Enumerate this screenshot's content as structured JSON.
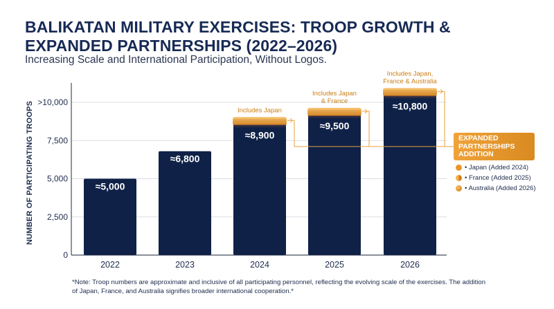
{
  "title": "BALIKATAN MILITARY EXERCISES: TROOP GROWTH & EXPANDED PARTNERSHIPS (2022–2026)",
  "subtitle": "Increasing Scale and International Participation, Without Logos.",
  "colors": {
    "bar": "#0f2147",
    "accent": "#e9962c",
    "text": "#1d2c4c"
  },
  "chart_data": {
    "type": "bar",
    "categories": [
      "2022",
      "2023",
      "2024",
      "2025",
      "2026"
    ],
    "values": [
      5000,
      6800,
      8900,
      9500,
      10800
    ],
    "value_labels": [
      "≈5,000",
      "≈6,800",
      "≈8,900",
      "≈9,500",
      "≈10,800"
    ],
    "ylabel": "NUMBER OF PARTICIPATING TROOPS",
    "ylim": [
      0,
      10000
    ],
    "yticks": [
      0,
      2500,
      5000,
      7500,
      10000
    ],
    "ytick_labels": [
      "0",
      "2,500",
      "5,000",
      "7,500",
      ">10,000"
    ],
    "grid": true,
    "annotations": [
      {
        "category": "2024",
        "lines": [
          "Includes Japan"
        ]
      },
      {
        "category": "2025",
        "lines": [
          "Includes Japan",
          "& France"
        ]
      },
      {
        "category": "2026",
        "lines": [
          "Includes Japan,",
          "France & Australia"
        ]
      }
    ],
    "legend": {
      "title": "EXPANDED PARTNERSHIPS ADDITION",
      "items": [
        "• Japan (Added 2024)",
        "• France (Added 2025)",
        "• Australia (Added 2026)"
      ]
    }
  },
  "note": "*Note: Troop numbers are approximate and inclusive of all participating personnel, reflecting the evolving scale of the exercises. The addition of Japan, France, and Australia signifies broader international cooperation.*"
}
